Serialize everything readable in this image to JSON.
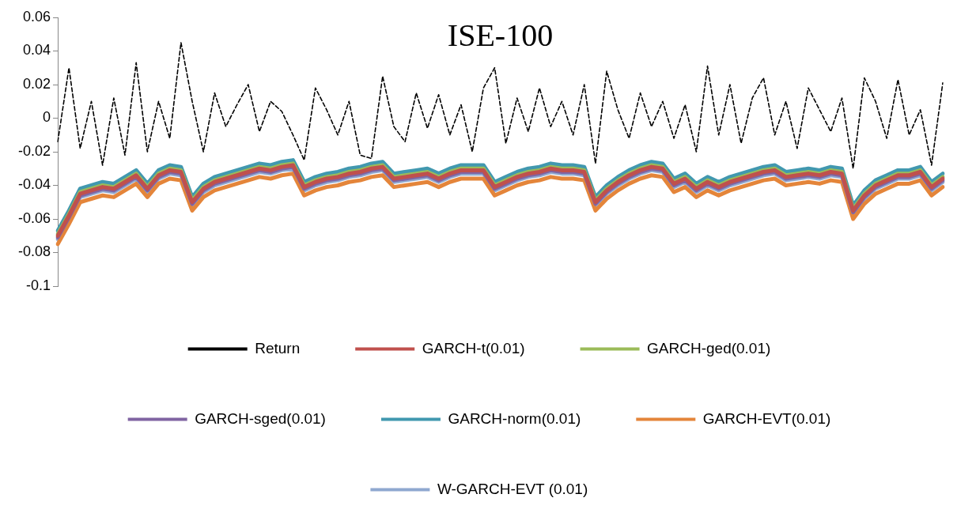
{
  "chart_data": {
    "type": "line",
    "title": "ISE-100",
    "categories": [
      null,
      null,
      null,
      null,
      null,
      null,
      null,
      null,
      null,
      null,
      null,
      null,
      null,
      null,
      null,
      null,
      null,
      null,
      null,
      null,
      null,
      null,
      null,
      null,
      null,
      null,
      null,
      null,
      null,
      null,
      null,
      null,
      null,
      null,
      null,
      null,
      null,
      null,
      null,
      null,
      null,
      null,
      null,
      null,
      null,
      null,
      null,
      null,
      null,
      null,
      null,
      null,
      null,
      null,
      null,
      null,
      null,
      null,
      null,
      null,
      null,
      null,
      null,
      null,
      null,
      null,
      null,
      null,
      null,
      null,
      null,
      null,
      null,
      null,
      null,
      null,
      null,
      null,
      null,
      null
    ],
    "ylim": [
      -0.1,
      0.06
    ],
    "yticks": [
      -0.1,
      -0.08,
      -0.06,
      -0.04,
      -0.02,
      0,
      0.02,
      0.04,
      0.06
    ],
    "grid": false,
    "legend": "bottom",
    "marker": "none",
    "tick_labels": "y",
    "series": [
      {
        "name": "Return",
        "color": "#000000",
        "line_style": "dashed",
        "values": [
          -0.014,
          0.03,
          -0.018,
          0.01,
          -0.028,
          0.012,
          -0.022,
          0.033,
          -0.02,
          0.01,
          -0.012,
          0.045,
          0.01,
          -0.02,
          0.015,
          -0.005,
          0.008,
          0.02,
          -0.008,
          0.01,
          0.004,
          -0.01,
          -0.025,
          0.018,
          0.005,
          -0.01,
          0.01,
          -0.022,
          -0.024,
          0.025,
          -0.005,
          -0.014,
          0.015,
          -0.006,
          0.014,
          -0.01,
          0.008,
          -0.02,
          0.018,
          0.03,
          -0.015,
          0.012,
          -0.008,
          0.018,
          -0.005,
          0.01,
          -0.01,
          0.02,
          -0.027,
          0.028,
          0.005,
          -0.012,
          0.015,
          -0.005,
          0.01,
          -0.012,
          0.008,
          -0.02,
          0.031,
          -0.01,
          0.02,
          -0.015,
          0.012,
          0.024,
          -0.01,
          0.01,
          -0.018,
          0.018,
          0.005,
          -0.008,
          0.012,
          -0.03,
          0.024,
          0.01,
          -0.012,
          0.023,
          -0.01,
          0.005,
          -0.028,
          0.021
        ]
      },
      {
        "name": "GARCH-t(0.01)",
        "color": "#c0504d",
        "line_style": "solid",
        "values": [
          -0.07,
          -0.058,
          -0.045,
          -0.043,
          -0.041,
          -0.042,
          -0.038,
          -0.034,
          -0.042,
          -0.034,
          -0.031,
          -0.032,
          -0.05,
          -0.042,
          -0.038,
          -0.036,
          -0.034,
          -0.032,
          -0.03,
          -0.031,
          -0.029,
          -0.028,
          -0.041,
          -0.038,
          -0.036,
          -0.035,
          -0.033,
          -0.032,
          -0.03,
          -0.029,
          -0.036,
          -0.035,
          -0.034,
          -0.033,
          -0.036,
          -0.033,
          -0.031,
          -0.031,
          -0.031,
          -0.041,
          -0.038,
          -0.035,
          -0.033,
          -0.032,
          -0.03,
          -0.031,
          -0.031,
          -0.032,
          -0.05,
          -0.043,
          -0.038,
          -0.034,
          -0.031,
          -0.029,
          -0.03,
          -0.039,
          -0.036,
          -0.042,
          -0.038,
          -0.041,
          -0.038,
          -0.036,
          -0.034,
          -0.032,
          -0.031,
          -0.035,
          -0.034,
          -0.033,
          -0.034,
          -0.032,
          -0.033,
          -0.055,
          -0.046,
          -0.04,
          -0.037,
          -0.034,
          -0.034,
          -0.032,
          -0.041,
          -0.036
        ]
      },
      {
        "name": "GARCH-ged(0.01)",
        "color": "#9bbb59",
        "line_style": "solid",
        "values": [
          -0.069,
          -0.057,
          -0.044,
          -0.042,
          -0.04,
          -0.041,
          -0.037,
          -0.033,
          -0.041,
          -0.033,
          -0.03,
          -0.031,
          -0.049,
          -0.041,
          -0.037,
          -0.035,
          -0.033,
          -0.031,
          -0.029,
          -0.03,
          -0.028,
          -0.027,
          -0.04,
          -0.037,
          -0.035,
          -0.034,
          -0.032,
          -0.031,
          -0.029,
          -0.028,
          -0.035,
          -0.034,
          -0.033,
          -0.032,
          -0.035,
          -0.032,
          -0.03,
          -0.03,
          -0.03,
          -0.04,
          -0.037,
          -0.034,
          -0.032,
          -0.031,
          -0.029,
          -0.03,
          -0.03,
          -0.031,
          -0.049,
          -0.042,
          -0.037,
          -0.033,
          -0.03,
          -0.028,
          -0.029,
          -0.038,
          -0.035,
          -0.041,
          -0.037,
          -0.04,
          -0.037,
          -0.035,
          -0.033,
          -0.031,
          -0.03,
          -0.034,
          -0.033,
          -0.032,
          -0.033,
          -0.031,
          -0.032,
          -0.054,
          -0.045,
          -0.039,
          -0.036,
          -0.033,
          -0.033,
          -0.031,
          -0.04,
          -0.035
        ]
      },
      {
        "name": "GARCH-sged(0.01)",
        "color": "#8064a2",
        "line_style": "solid",
        "values": [
          -0.071,
          -0.059,
          -0.046,
          -0.044,
          -0.042,
          -0.043,
          -0.039,
          -0.035,
          -0.043,
          -0.035,
          -0.032,
          -0.033,
          -0.051,
          -0.043,
          -0.039,
          -0.037,
          -0.035,
          -0.033,
          -0.031,
          -0.032,
          -0.03,
          -0.029,
          -0.042,
          -0.039,
          -0.037,
          -0.036,
          -0.034,
          -0.033,
          -0.031,
          -0.03,
          -0.037,
          -0.036,
          -0.035,
          -0.034,
          -0.037,
          -0.034,
          -0.032,
          -0.032,
          -0.032,
          -0.042,
          -0.039,
          -0.036,
          -0.034,
          -0.033,
          -0.031,
          -0.032,
          -0.032,
          -0.033,
          -0.051,
          -0.044,
          -0.039,
          -0.035,
          -0.032,
          -0.03,
          -0.031,
          -0.04,
          -0.037,
          -0.043,
          -0.039,
          -0.042,
          -0.039,
          -0.037,
          -0.035,
          -0.033,
          -0.032,
          -0.036,
          -0.035,
          -0.034,
          -0.035,
          -0.033,
          -0.034,
          -0.056,
          -0.047,
          -0.041,
          -0.038,
          -0.035,
          -0.035,
          -0.033,
          -0.042,
          -0.037
        ]
      },
      {
        "name": "GARCH-norm(0.01)",
        "color": "#4198af",
        "line_style": "solid",
        "values": [
          -0.067,
          -0.055,
          -0.042,
          -0.04,
          -0.038,
          -0.039,
          -0.035,
          -0.031,
          -0.039,
          -0.031,
          -0.028,
          -0.029,
          -0.047,
          -0.039,
          -0.035,
          -0.033,
          -0.031,
          -0.029,
          -0.027,
          -0.028,
          -0.026,
          -0.025,
          -0.038,
          -0.035,
          -0.033,
          -0.032,
          -0.03,
          -0.029,
          -0.027,
          -0.026,
          -0.033,
          -0.032,
          -0.031,
          -0.03,
          -0.033,
          -0.03,
          -0.028,
          -0.028,
          -0.028,
          -0.038,
          -0.035,
          -0.032,
          -0.03,
          -0.029,
          -0.027,
          -0.028,
          -0.028,
          -0.029,
          -0.047,
          -0.04,
          -0.035,
          -0.031,
          -0.028,
          -0.026,
          -0.027,
          -0.036,
          -0.033,
          -0.039,
          -0.035,
          -0.038,
          -0.035,
          -0.033,
          -0.031,
          -0.029,
          -0.028,
          -0.032,
          -0.031,
          -0.03,
          -0.031,
          -0.029,
          -0.03,
          -0.052,
          -0.043,
          -0.037,
          -0.034,
          -0.031,
          -0.031,
          -0.029,
          -0.038,
          -0.033
        ]
      },
      {
        "name": "GARCH-EVT(0.01)",
        "color": "#e4853a",
        "line_style": "solid",
        "values": [
          -0.075,
          -0.063,
          -0.05,
          -0.048,
          -0.046,
          -0.047,
          -0.043,
          -0.039,
          -0.047,
          -0.039,
          -0.036,
          -0.037,
          -0.055,
          -0.047,
          -0.043,
          -0.041,
          -0.039,
          -0.037,
          -0.035,
          -0.036,
          -0.034,
          -0.033,
          -0.046,
          -0.043,
          -0.041,
          -0.04,
          -0.038,
          -0.037,
          -0.035,
          -0.034,
          -0.041,
          -0.04,
          -0.039,
          -0.038,
          -0.041,
          -0.038,
          -0.036,
          -0.036,
          -0.036,
          -0.046,
          -0.043,
          -0.04,
          -0.038,
          -0.037,
          -0.035,
          -0.036,
          -0.036,
          -0.037,
          -0.055,
          -0.048,
          -0.043,
          -0.039,
          -0.036,
          -0.034,
          -0.035,
          -0.044,
          -0.041,
          -0.047,
          -0.043,
          -0.046,
          -0.043,
          -0.041,
          -0.039,
          -0.037,
          -0.036,
          -0.04,
          -0.039,
          -0.038,
          -0.039,
          -0.037,
          -0.038,
          -0.06,
          -0.051,
          -0.045,
          -0.042,
          -0.039,
          -0.039,
          -0.037,
          -0.046,
          -0.041
        ]
      },
      {
        "name": "W-GARCH-EVT (0.01)",
        "color": "#8fa8d0",
        "line_style": "solid",
        "values": [
          -0.072,
          -0.06,
          -0.047,
          -0.045,
          -0.043,
          -0.044,
          -0.04,
          -0.036,
          -0.044,
          -0.036,
          -0.033,
          -0.034,
          -0.052,
          -0.044,
          -0.04,
          -0.038,
          -0.036,
          -0.034,
          -0.032,
          -0.033,
          -0.031,
          -0.03,
          -0.043,
          -0.04,
          -0.038,
          -0.037,
          -0.035,
          -0.034,
          -0.032,
          -0.031,
          -0.038,
          -0.037,
          -0.036,
          -0.035,
          -0.038,
          -0.035,
          -0.033,
          -0.033,
          -0.033,
          -0.043,
          -0.04,
          -0.037,
          -0.035,
          -0.034,
          -0.032,
          -0.033,
          -0.033,
          -0.034,
          -0.052,
          -0.045,
          -0.04,
          -0.036,
          -0.033,
          -0.031,
          -0.032,
          -0.041,
          -0.038,
          -0.044,
          -0.04,
          -0.043,
          -0.04,
          -0.038,
          -0.036,
          -0.034,
          -0.033,
          -0.037,
          -0.036,
          -0.035,
          -0.036,
          -0.034,
          -0.035,
          -0.057,
          -0.048,
          -0.042,
          -0.039,
          -0.036,
          -0.036,
          -0.034,
          -0.043,
          -0.038
        ]
      }
    ]
  }
}
